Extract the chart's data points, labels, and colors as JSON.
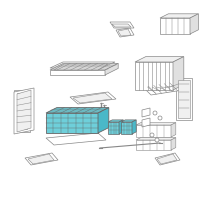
{
  "bg_color": "#ffffff",
  "highlight_color": "#6ecfda",
  "line_color": "#888888",
  "dark_gray": "#666666",
  "light_fill": "#f0f0f0",
  "mid_fill": "#e0e0e0",
  "white": "#ffffff"
}
